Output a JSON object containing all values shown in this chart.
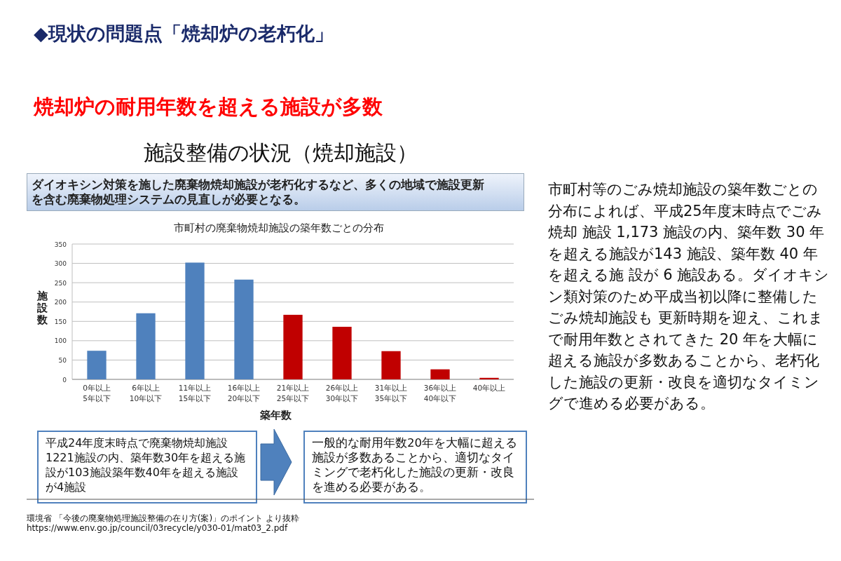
{
  "chart_data": {
    "type": "bar",
    "title": "市町村の廃棄物焼却施設の築年数ごとの分布",
    "xlabel": "築年数",
    "ylabel": "施設数",
    "categories": [
      "0年以上\n5年以下",
      "6年以上\n10年以下",
      "11年以上\n15年以下",
      "16年以上\n20年以下",
      "21年以上\n25年以下",
      "26年以上\n30年以下",
      "31年以上\n35年以下",
      "36年以上\n40年以下",
      "40年以上"
    ],
    "values": [
      74,
      171,
      302,
      258,
      167,
      136,
      73,
      26,
      4
    ],
    "colors": [
      "#4f81bd",
      "#4f81bd",
      "#4f81bd",
      "#4f81bd",
      "#c00000",
      "#c00000",
      "#c00000",
      "#c00000",
      "#c00000"
    ],
    "ylim": [
      0,
      350
    ],
    "yticks": [
      0,
      50,
      100,
      150,
      200,
      250,
      300,
      350
    ],
    "grid": "y",
    "annotations": [
      "◆現状の問題点「焼却炉の老朽化」",
      "焼却炉の耐用年数を超える施設が多数",
      "施設整備の状況（焼却施設）",
      "ダイオキシン対策を施した廃棄物焼却施設が老朽化するなど、多くの地域で施設更新を含む廃棄物処理システムの見直しが必要となる。",
      "平成24年度末時点で廃棄物焼却施設1221施設の内、築年数30年を超える施設が103施設築年数40年を超える施設が4施設",
      "一般的な耐用年数20年を大幅に超える施設が多数あることから、適切なタイミングで老朽化した施設の更新・改良を進める必要がある。",
      "環境省 「今後の廃棄物処理施設整備の在り方(案)」のポイント より抜粋",
      "https://www.env.go.jp/council/03recycle/y030-01/mat03_2.pdf",
      "市町村等のごみ焼却施設の築年数ごとの分布によれば、平成25年度末時点でごみ焼却 施設 1,173 施設の内、築年数 30 年を超える施設が143 施設、築年数 40 年を超える施 設が 6 施設ある。ダイオキシン類対策のため平成当初以降に整備したごみ焼却施設も 更新時期を迎え、これまで耐用年数とされてきた 20 年を大幅に超える施設が多数あることから、老朽化した施設の更新・改良を適切なタイミングで進める必要がある。"
    ]
  }
}
